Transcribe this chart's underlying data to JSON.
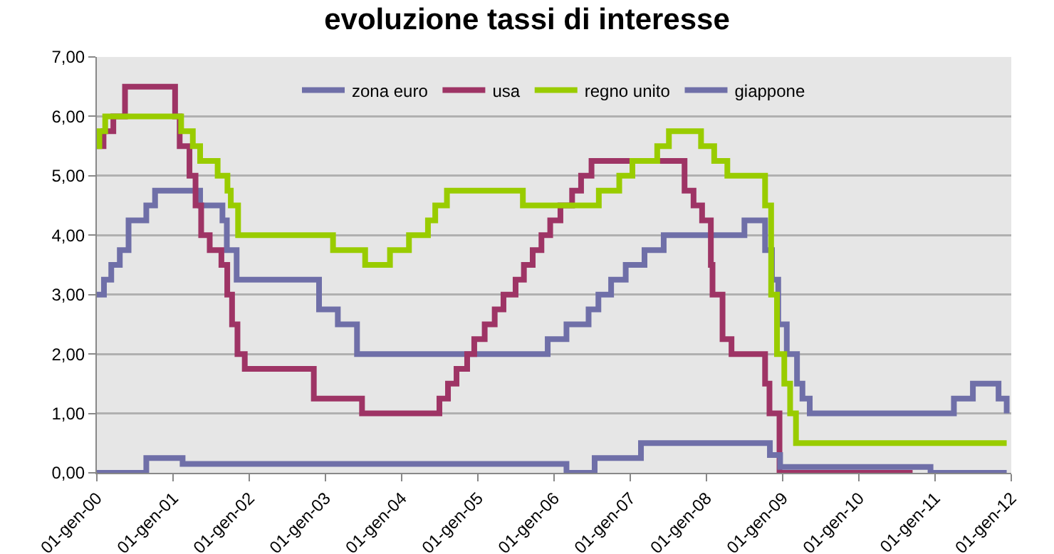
{
  "chart_data": {
    "type": "step",
    "title": "evoluzione tassi di interesse",
    "xlim": [
      "2000-01-01",
      "2012-01-01"
    ],
    "xticks": [
      {
        "value": "2000-01-01",
        "label": "01-gen-00"
      },
      {
        "value": "2001-01-01",
        "label": "01-gen-01"
      },
      {
        "value": "2002-01-01",
        "label": "01-gen-02"
      },
      {
        "value": "2003-01-01",
        "label": "01-gen-03"
      },
      {
        "value": "2004-01-01",
        "label": "01-gen-04"
      },
      {
        "value": "2005-01-01",
        "label": "01-gen-05"
      },
      {
        "value": "2006-01-01",
        "label": "01-gen-06"
      },
      {
        "value": "2007-01-01",
        "label": "01-gen-07"
      },
      {
        "value": "2008-01-01",
        "label": "01-gen-08"
      },
      {
        "value": "2009-01-01",
        "label": "01-gen-09"
      },
      {
        "value": "2010-01-01",
        "label": "01-gen-10"
      },
      {
        "value": "2011-01-01",
        "label": "01-gen-11"
      },
      {
        "value": "2012-01-01",
        "label": "01-gen-12"
      }
    ],
    "ylim": [
      0,
      7
    ],
    "yticks": [
      {
        "value": 0,
        "label": "0,00"
      },
      {
        "value": 1,
        "label": "1,00"
      },
      {
        "value": 2,
        "label": "2,00"
      },
      {
        "value": 3,
        "label": "3,00"
      },
      {
        "value": 4,
        "label": "4,00"
      },
      {
        "value": 5,
        "label": "5,00"
      },
      {
        "value": 6,
        "label": "6,00"
      },
      {
        "value": 7,
        "label": "7,00"
      }
    ],
    "grid": "y",
    "legend": "top",
    "line_style": "solid",
    "marker": "none",
    "series": [
      {
        "name": "zona euro",
        "color": "#6f6fa8",
        "x": [
          "2000-01-01",
          "2000-02-04",
          "2000-03-10",
          "2000-04-20",
          "2000-06-01",
          "2000-08-25",
          "2000-10-06",
          "2001-05-10",
          "2001-08-25",
          "2001-09-15",
          "2001-11-01",
          "2002-12-01",
          "2003-03-01",
          "2003-06-01",
          "2005-12-01",
          "2006-03-01",
          "2006-06-15",
          "2006-08-01",
          "2006-10-01",
          "2006-12-10",
          "2007-03-10",
          "2007-06-10",
          "2008-07-01",
          "2008-10-08",
          "2008-11-10",
          "2008-12-10",
          "2009-01-20",
          "2009-03-10",
          "2009-04-05",
          "2009-05-10",
          "2011-04-01",
          "2011-07-01",
          "2011-11-01",
          "2011-12-10"
        ],
        "values": [
          3.0,
          3.25,
          3.5,
          3.75,
          4.25,
          4.5,
          4.75,
          4.5,
          4.25,
          3.75,
          3.25,
          2.75,
          2.5,
          2.0,
          2.25,
          2.5,
          2.75,
          3.0,
          3.25,
          3.5,
          3.75,
          4.0,
          4.25,
          3.75,
          3.25,
          2.5,
          2.0,
          1.5,
          1.25,
          1.0,
          1.25,
          1.5,
          1.25,
          1.0
        ]
      },
      {
        "name": "usa",
        "color": "#9e3465",
        "x": [
          "2000-01-01",
          "2000-02-02",
          "2000-03-20",
          "2000-05-15",
          "2001-01-10",
          "2001-02-01",
          "2001-03-20",
          "2001-04-18",
          "2001-05-15",
          "2001-06-25",
          "2001-08-20",
          "2001-09-17",
          "2001-10-10",
          "2001-11-05",
          "2001-12-10",
          "2002-11-06",
          "2003-06-25",
          "2004-06-30",
          "2004-08-10",
          "2004-09-20",
          "2004-11-10",
          "2004-12-14",
          "2005-02-02",
          "2005-03-22",
          "2005-05-03",
          "2005-06-30",
          "2005-08-09",
          "2005-09-20",
          "2005-11-01",
          "2005-12-13",
          "2006-01-31",
          "2006-03-28",
          "2006-05-10",
          "2006-06-29",
          "2007-09-18",
          "2007-10-31",
          "2007-12-11",
          "2008-01-22",
          "2008-01-30",
          "2008-03-18",
          "2008-04-30",
          "2008-10-08",
          "2008-10-29",
          "2008-12-16",
          "2010-09-15"
        ],
        "values": [
          5.5,
          5.75,
          6.0,
          6.5,
          6.0,
          5.5,
          5.0,
          4.5,
          4.0,
          3.75,
          3.5,
          3.0,
          2.5,
          2.0,
          1.75,
          1.25,
          1.0,
          1.25,
          1.5,
          1.75,
          2.0,
          2.25,
          2.5,
          2.75,
          3.0,
          3.25,
          3.5,
          3.75,
          4.0,
          4.25,
          4.5,
          4.75,
          5.0,
          5.25,
          4.75,
          4.5,
          4.25,
          3.5,
          3.0,
          2.25,
          2.0,
          1.5,
          1.0,
          0,
          0
        ]
      },
      {
        "name": "regno unito",
        "color": "#99cc00",
        "x": [
          "2000-01-01",
          "2000-01-13",
          "2000-02-10",
          "2001-02-08",
          "2001-04-05",
          "2001-05-10",
          "2001-08-02",
          "2001-09-18",
          "2001-10-04",
          "2001-11-08",
          "2003-02-06",
          "2003-07-10",
          "2003-11-06",
          "2004-02-05",
          "2004-05-06",
          "2004-06-10",
          "2004-08-05",
          "2005-08-04",
          "2006-08-03",
          "2006-11-09",
          "2007-01-11",
          "2007-05-10",
          "2007-07-05",
          "2007-12-06",
          "2008-02-07",
          "2008-04-10",
          "2008-10-08",
          "2008-11-06",
          "2008-12-04",
          "2009-01-08",
          "2009-02-05",
          "2009-03-05",
          "2011-12-10"
        ],
        "values": [
          5.5,
          5.75,
          6.0,
          5.75,
          5.5,
          5.25,
          5.0,
          4.75,
          4.5,
          4.0,
          3.75,
          3.5,
          3.75,
          4.0,
          4.25,
          4.5,
          4.75,
          4.5,
          4.75,
          5.0,
          5.25,
          5.5,
          5.75,
          5.5,
          5.25,
          5.0,
          4.5,
          3.0,
          2.0,
          1.5,
          1.0,
          0.5,
          0.5
        ]
      },
      {
        "name": "giappone",
        "color": "#6f6fa8",
        "x": [
          "2000-01-01",
          "2000-08-25",
          "2001-02-15",
          "2006-03-01",
          "2006-07-14",
          "2007-02-21",
          "2008-10-31",
          "2008-12-19",
          "2010-12-10",
          "2011-12-10"
        ],
        "values": [
          0,
          0.25,
          0.15,
          0,
          0.25,
          0.5,
          0.3,
          0.1,
          0,
          0
        ]
      }
    ]
  }
}
